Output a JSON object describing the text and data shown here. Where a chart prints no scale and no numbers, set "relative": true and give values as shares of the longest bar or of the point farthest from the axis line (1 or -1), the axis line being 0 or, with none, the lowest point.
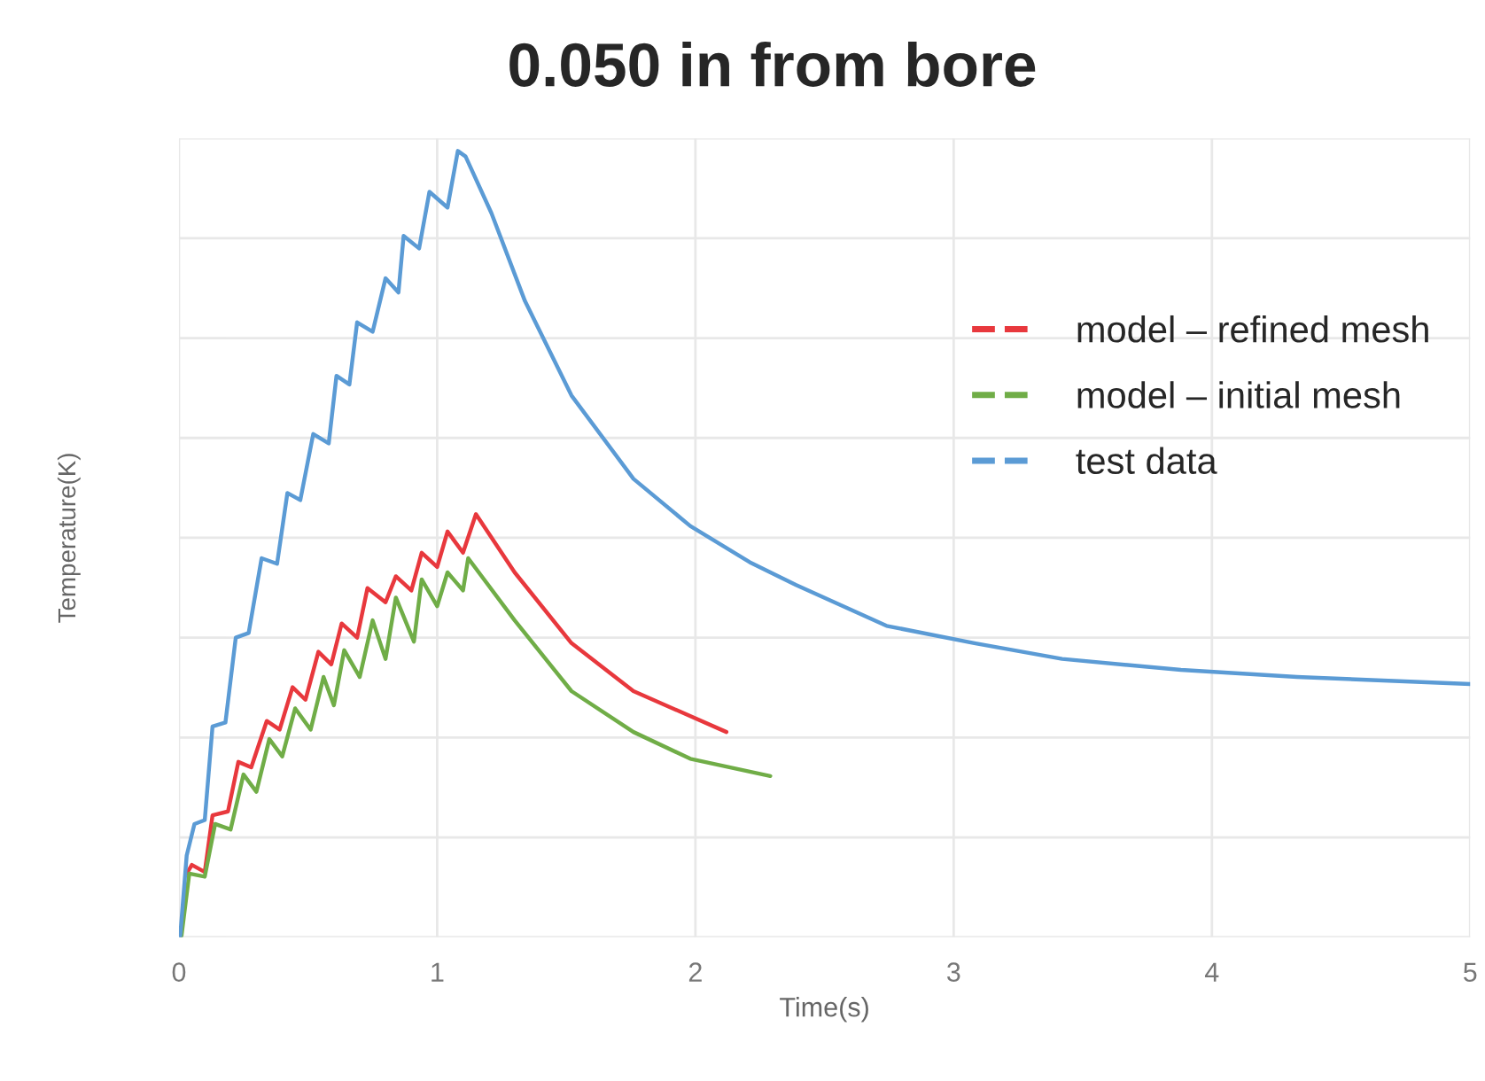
{
  "chart_data": {
    "type": "line",
    "title": "0.050 in from bore",
    "xlabel": "Time(s)",
    "ylabel": "Temperature(K)",
    "relative": true,
    "xlim": [
      0,
      5
    ],
    "xticks": [
      0,
      1,
      2,
      3,
      4,
      5
    ],
    "grid": true,
    "legend": "top right",
    "line_style": "solid",
    "series": [
      {
        "name": "model – refined mesh",
        "color": "#e8383d",
        "x": [
          0.03,
          0.05,
          0.1,
          0.13,
          0.19,
          0.23,
          0.28,
          0.34,
          0.39,
          0.44,
          0.49,
          0.54,
          0.59,
          0.63,
          0.69,
          0.73,
          0.8,
          0.84,
          0.9,
          0.94,
          1.0,
          1.04,
          1.1,
          1.15,
          1.3,
          1.52,
          1.76,
          2.12
        ],
        "values": [
          0.081,
          0.092,
          0.083,
          0.155,
          0.16,
          0.223,
          0.216,
          0.275,
          0.264,
          0.318,
          0.302,
          0.363,
          0.347,
          0.399,
          0.381,
          0.444,
          0.426,
          0.459,
          0.441,
          0.489,
          0.471,
          0.516,
          0.489,
          0.538,
          0.464,
          0.374,
          0.313,
          0.261
        ]
      },
      {
        "name": "model – initial mesh",
        "color": "#70ad47",
        "x": [
          0.01,
          0.04,
          0.1,
          0.14,
          0.2,
          0.25,
          0.3,
          0.35,
          0.4,
          0.45,
          0.51,
          0.56,
          0.6,
          0.64,
          0.7,
          0.75,
          0.8,
          0.84,
          0.91,
          0.94,
          1.0,
          1.04,
          1.1,
          1.12,
          1.3,
          1.52,
          1.76,
          1.98,
          2.29
        ],
        "values": [
          0.002,
          0.081,
          0.077,
          0.144,
          0.137,
          0.207,
          0.185,
          0.252,
          0.23,
          0.291,
          0.264,
          0.331,
          0.295,
          0.365,
          0.331,
          0.403,
          0.354,
          0.432,
          0.376,
          0.455,
          0.421,
          0.464,
          0.441,
          0.482,
          0.403,
          0.313,
          0.261,
          0.227,
          0.205
        ]
      },
      {
        "name": "test data",
        "color": "#5b9bd5",
        "x": [
          0.005,
          0.03,
          0.06,
          0.1,
          0.13,
          0.18,
          0.22,
          0.27,
          0.32,
          0.38,
          0.42,
          0.47,
          0.52,
          0.58,
          0.61,
          0.66,
          0.69,
          0.75,
          0.8,
          0.85,
          0.87,
          0.93,
          0.97,
          1.04,
          1.08,
          1.11,
          1.21,
          1.34,
          1.52,
          1.76,
          1.98,
          2.21,
          2.39,
          2.74,
          3.08,
          3.42,
          3.88,
          4.33,
          5.0
        ],
        "values": [
          0.002,
          0.104,
          0.144,
          0.149,
          0.268,
          0.273,
          0.381,
          0.387,
          0.482,
          0.475,
          0.565,
          0.556,
          0.64,
          0.628,
          0.714,
          0.703,
          0.782,
          0.77,
          0.838,
          0.82,
          0.892,
          0.876,
          0.948,
          0.928,
          1.0,
          0.993,
          0.921,
          0.809,
          0.689,
          0.583,
          0.523,
          0.477,
          0.448,
          0.396,
          0.374,
          0.354,
          0.34,
          0.331,
          0.322
        ]
      }
    ]
  }
}
